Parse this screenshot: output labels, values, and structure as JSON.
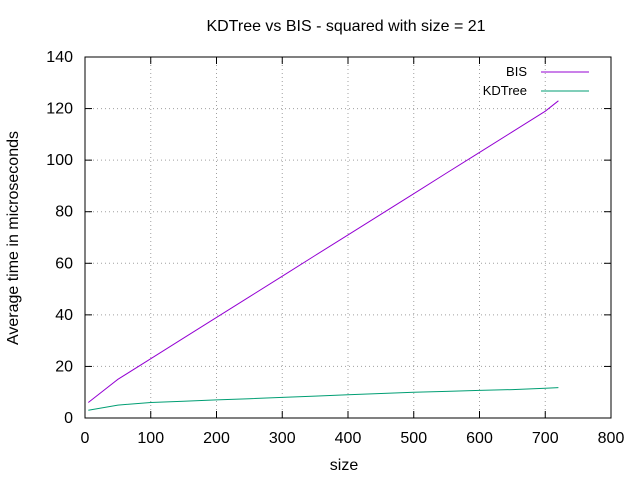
{
  "chart_data": {
    "type": "line",
    "title": "KDTree vs BIS - squared with size = 21",
    "xlabel": "size",
    "ylabel": "Average time in microseconds",
    "xlim": [
      0,
      800
    ],
    "ylim": [
      0,
      140
    ],
    "xticks": [
      0,
      100,
      200,
      300,
      400,
      500,
      600,
      700,
      800
    ],
    "yticks": [
      0,
      20,
      40,
      60,
      80,
      100,
      120,
      140
    ],
    "grid": true,
    "legend_position": "top-right",
    "series": [
      {
        "name": "BIS",
        "color": "#9400d3",
        "x": [
          5,
          50,
          100,
          150,
          200,
          250,
          300,
          350,
          400,
          450,
          500,
          550,
          600,
          650,
          700,
          720
        ],
        "y": [
          6,
          15,
          23,
          31,
          39,
          47,
          55,
          63,
          71,
          79,
          87,
          95,
          103,
          111,
          119,
          123
        ]
      },
      {
        "name": "KDTree",
        "color": "#009e73",
        "x": [
          5,
          50,
          100,
          150,
          200,
          250,
          300,
          350,
          400,
          450,
          500,
          550,
          600,
          650,
          700,
          720
        ],
        "y": [
          3,
          5,
          6,
          6.5,
          7,
          7.5,
          8,
          8.5,
          9,
          9.5,
          10,
          10.3,
          10.7,
          11,
          11.5,
          11.8
        ]
      }
    ]
  }
}
